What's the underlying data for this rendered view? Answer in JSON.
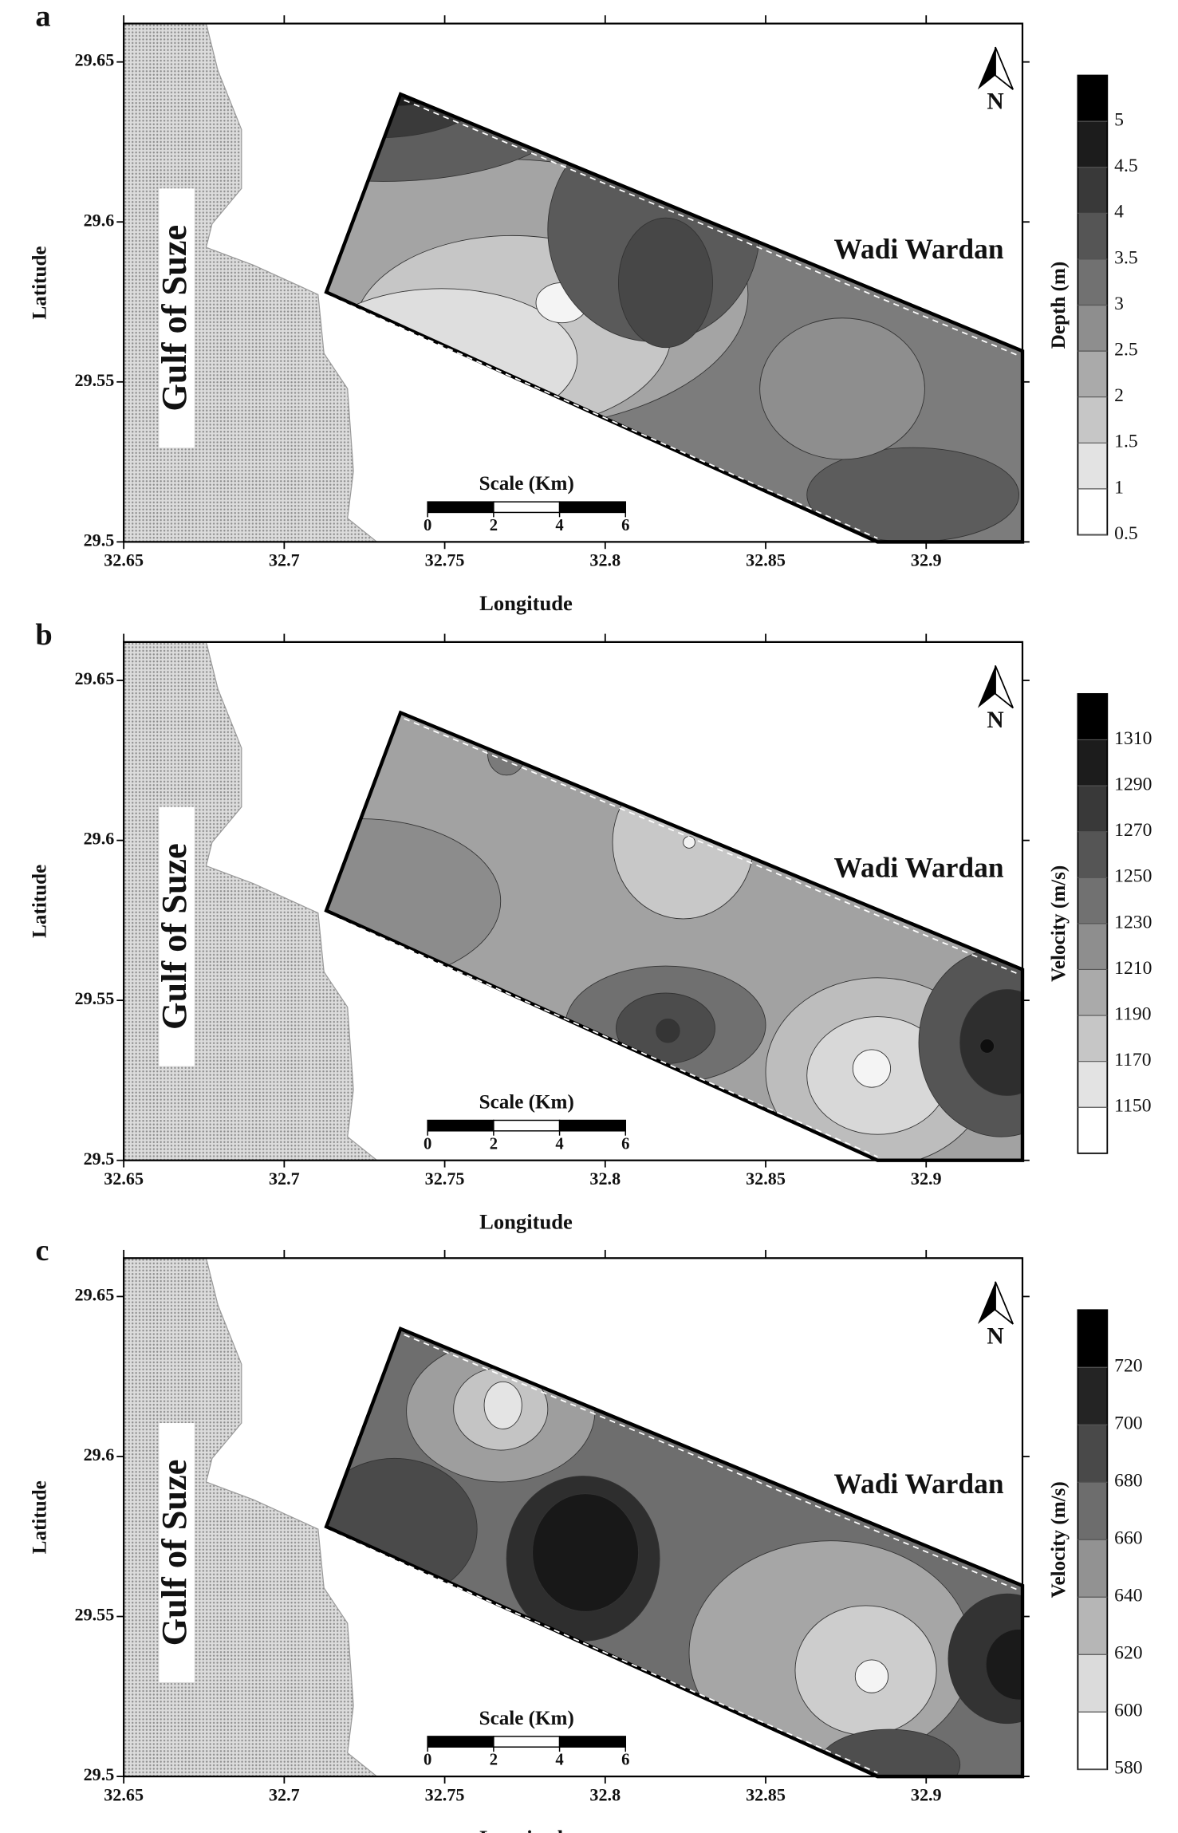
{
  "panels": [
    {
      "label": "a",
      "xlabel": "Longitude",
      "ylabel": "Latitude",
      "xlim": [
        32.65,
        32.93
      ],
      "ylim": [
        29.5,
        29.662
      ],
      "xticks": [
        32.65,
        32.7,
        32.75,
        32.8,
        32.85,
        32.9
      ],
      "yticks": [
        29.5,
        29.55,
        29.6,
        29.65
      ],
      "places": {
        "sea": "Gulf of Suze",
        "site": "Wadi Wardan",
        "north": "N"
      },
      "scale": {
        "title": "Scale (Km)",
        "ticks": [
          0,
          2,
          4,
          6
        ]
      },
      "colorbar": {
        "title": "Depth (m)",
        "colormap": "grays",
        "lim": [
          0.5,
          5.5
        ],
        "ticks": [
          0.5,
          1,
          1.5,
          2,
          2.5,
          3,
          3.5,
          4,
          4.5,
          5
        ]
      }
    },
    {
      "label": "b",
      "xlabel": "Longitude",
      "ylabel": "Latitude",
      "xlim": [
        32.65,
        32.93
      ],
      "ylim": [
        29.5,
        29.662
      ],
      "xticks": [
        32.65,
        32.7,
        32.75,
        32.8,
        32.85,
        32.9
      ],
      "yticks": [
        29.5,
        29.55,
        29.6,
        29.65
      ],
      "places": {
        "sea": "Gulf of Suze",
        "site": "Wadi Wardan",
        "north": "N"
      },
      "scale": {
        "title": "Scale (Km)",
        "ticks": [
          0,
          2,
          4,
          6
        ]
      },
      "colorbar": {
        "title": "Velocity (m/s)",
        "colormap": "grays",
        "lim": [
          1130,
          1330
        ],
        "ticks": [
          1150,
          1170,
          1190,
          1210,
          1230,
          1250,
          1270,
          1290,
          1310
        ]
      }
    },
    {
      "label": "c",
      "xlabel": "Longitude",
      "ylabel": "Latitude",
      "xlim": [
        32.65,
        32.93
      ],
      "ylim": [
        29.5,
        29.662
      ],
      "xticks": [
        32.65,
        32.7,
        32.75,
        32.8,
        32.85,
        32.9
      ],
      "yticks": [
        29.5,
        29.55,
        29.6,
        29.65
      ],
      "places": {
        "sea": "Gulf of Suze",
        "site": "Wadi Wardan",
        "north": "N"
      },
      "scale": {
        "title": "Scale (Km)",
        "ticks": [
          0,
          2,
          4,
          6
        ]
      },
      "colorbar": {
        "title": "Velocity (m/s)",
        "colormap": "grays",
        "lim": [
          580,
          740
        ],
        "ticks": [
          580,
          600,
          620,
          640,
          660,
          680,
          700,
          720
        ]
      }
    }
  ]
}
